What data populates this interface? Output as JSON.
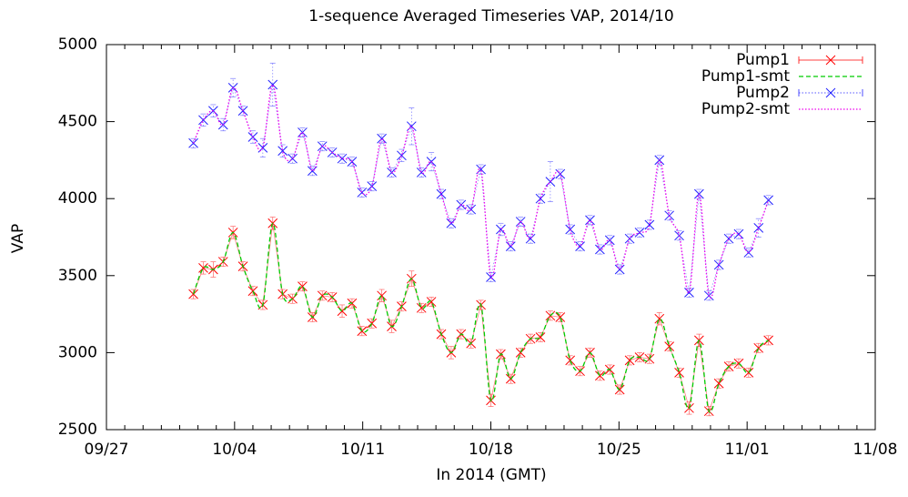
{
  "chart_data": {
    "type": "line",
    "title": "1-sequence Averaged Timeseries VAP, 2014/10",
    "xlabel": "In 2014 (GMT)",
    "ylabel": "VAP",
    "x": [
      "2014-10-01T18:00",
      "2014-10-02T07:00",
      "2014-10-02T20:00",
      "2014-10-03T09:00",
      "2014-10-03T22:00",
      "2014-10-04T11:00",
      "2014-10-05T00:00",
      "2014-10-05T13:00",
      "2014-10-06T02:00",
      "2014-10-06T15:00",
      "2014-10-07T04:00",
      "2014-10-07T17:00",
      "2014-10-08T06:00",
      "2014-10-08T19:00",
      "2014-10-09T08:00",
      "2014-10-09T21:00",
      "2014-10-10T10:00",
      "2014-10-10T23:00",
      "2014-10-11T12:00",
      "2014-10-12T01:00",
      "2014-10-12T14:00",
      "2014-10-13T03:00",
      "2014-10-13T16:00",
      "2014-10-14T05:00",
      "2014-10-14T18:00",
      "2014-10-15T07:00",
      "2014-10-15T20:00",
      "2014-10-16T09:00",
      "2014-10-16T22:00",
      "2014-10-17T11:00",
      "2014-10-18T00:00",
      "2014-10-18T13:00",
      "2014-10-19T02:00",
      "2014-10-19T15:00",
      "2014-10-20T04:00",
      "2014-10-20T17:00",
      "2014-10-21T06:00",
      "2014-10-21T19:00",
      "2014-10-22T08:00",
      "2014-10-22T21:00",
      "2014-10-23T10:00",
      "2014-10-23T23:00",
      "2014-10-24T12:00",
      "2014-10-25T01:00",
      "2014-10-25T14:00",
      "2014-10-26T03:00",
      "2014-10-26T16:00",
      "2014-10-27T05:00",
      "2014-10-27T18:00",
      "2014-10-28T07:00",
      "2014-10-28T20:00",
      "2014-10-29T09:00",
      "2014-10-29T22:00",
      "2014-10-30T11:00",
      "2014-10-31T00:00",
      "2014-10-31T13:00",
      "2014-11-01T02:00",
      "2014-11-01T15:00",
      "2014-11-02T04:00"
    ],
    "series": [
      {
        "name": "Pump1",
        "color": "#ff0000",
        "marker": "x",
        "dash": "solid",
        "values": [
          3380,
          3550,
          3540,
          3590,
          3780,
          3560,
          3400,
          3310,
          3840,
          3380,
          3350,
          3430,
          3230,
          3370,
          3360,
          3270,
          3320,
          3140,
          3190,
          3370,
          3170,
          3300,
          3480,
          3290,
          3330,
          3120,
          3000,
          3120,
          3060,
          3310,
          2690,
          2990,
          2830,
          3000,
          3090,
          3100,
          3240,
          3230,
          2950,
          2880,
          3000,
          2850,
          2890,
          2760,
          2950,
          2970,
          2960,
          3220,
          3040,
          2870,
          2640,
          3080,
          2620,
          2800,
          2910,
          2930,
          2870,
          3030,
          3080
        ],
        "errors": [
          30,
          40,
          50,
          30,
          40,
          30,
          30,
          30,
          40,
          30,
          30,
          30,
          30,
          30,
          30,
          40,
          30,
          30,
          30,
          40,
          40,
          30,
          50,
          30,
          30,
          30,
          40,
          30,
          30,
          30,
          40,
          30,
          30,
          30,
          30,
          30,
          30,
          30,
          30,
          30,
          30,
          30,
          30,
          30,
          30,
          30,
          30,
          40,
          30,
          30,
          40,
          40,
          30,
          30,
          30,
          30,
          30,
          30,
          30
        ]
      },
      {
        "name": "Pump1-smt",
        "color": "#00cc00",
        "dash": "dashed",
        "smooth": true,
        "values": [
          3380,
          3550,
          3540,
          3590,
          3780,
          3560,
          3400,
          3310,
          3840,
          3380,
          3350,
          3430,
          3230,
          3370,
          3360,
          3270,
          3320,
          3140,
          3190,
          3370,
          3170,
          3300,
          3480,
          3290,
          3330,
          3120,
          3000,
          3120,
          3060,
          3310,
          2690,
          2990,
          2830,
          3000,
          3090,
          3100,
          3240,
          3230,
          2950,
          2880,
          3000,
          2850,
          2890,
          2760,
          2950,
          2970,
          2960,
          3220,
          3040,
          2870,
          2640,
          3080,
          2620,
          2800,
          2910,
          2930,
          2870,
          3030,
          3080
        ]
      },
      {
        "name": "Pump2",
        "color": "#2020ff",
        "marker": "x",
        "dash": "dotted",
        "values": [
          4360,
          4510,
          4570,
          4480,
          4720,
          4570,
          4400,
          4330,
          4740,
          4310,
          4260,
          4430,
          4180,
          4340,
          4300,
          4260,
          4240,
          4040,
          4080,
          4390,
          4170,
          4280,
          4470,
          4170,
          4240,
          4030,
          3840,
          3960,
          3930,
          4190,
          3490,
          3800,
          3690,
          3850,
          3740,
          4000,
          4110,
          4160,
          3800,
          3690,
          3860,
          3670,
          3730,
          3540,
          3740,
          3780,
          3830,
          4250,
          3890,
          3760,
          3390,
          4030,
          3370,
          3570,
          3740,
          3770,
          3650,
          3810,
          3990
        ],
        "errors": [
          30,
          40,
          40,
          40,
          60,
          30,
          40,
          60,
          140,
          40,
          30,
          30,
          30,
          30,
          30,
          30,
          30,
          30,
          30,
          30,
          30,
          40,
          120,
          30,
          60,
          30,
          30,
          30,
          30,
          30,
          30,
          40,
          30,
          30,
          30,
          30,
          130,
          30,
          30,
          30,
          30,
          30,
          30,
          30,
          30,
          30,
          30,
          30,
          30,
          30,
          30,
          30,
          30,
          30,
          30,
          30,
          30,
          60,
          30
        ]
      },
      {
        "name": "Pump2-smt",
        "color": "#ee00ee",
        "dash": "dotted",
        "smooth": true,
        "values": [
          4360,
          4510,
          4570,
          4480,
          4720,
          4570,
          4400,
          4330,
          4740,
          4310,
          4260,
          4430,
          4180,
          4340,
          4300,
          4260,
          4240,
          4040,
          4080,
          4390,
          4170,
          4280,
          4470,
          4170,
          4240,
          4030,
          3840,
          3960,
          3930,
          4190,
          3490,
          3800,
          3690,
          3850,
          3740,
          4000,
          4110,
          4160,
          3800,
          3690,
          3860,
          3670,
          3730,
          3540,
          3740,
          3780,
          3830,
          4250,
          3890,
          3760,
          3390,
          4030,
          3370,
          3570,
          3740,
          3770,
          3650,
          3810,
          3990
        ]
      }
    ],
    "xlim": [
      "2014-09-27",
      "2014-11-08"
    ],
    "xticks": [
      {
        "value": "2014-09-27",
        "label": "09/27"
      },
      {
        "value": "2014-10-04",
        "label": "10/04"
      },
      {
        "value": "2014-10-11",
        "label": "10/11"
      },
      {
        "value": "2014-10-18",
        "label": "10/18"
      },
      {
        "value": "2014-10-25",
        "label": "10/25"
      },
      {
        "value": "2014-11-01",
        "label": "11/01"
      },
      {
        "value": "2014-11-08",
        "label": "11/08"
      }
    ],
    "ylim": [
      2500,
      5000
    ],
    "yticks": [
      2500,
      3000,
      3500,
      4000,
      4500,
      5000
    ],
    "legend": "top-right",
    "grid": false
  }
}
